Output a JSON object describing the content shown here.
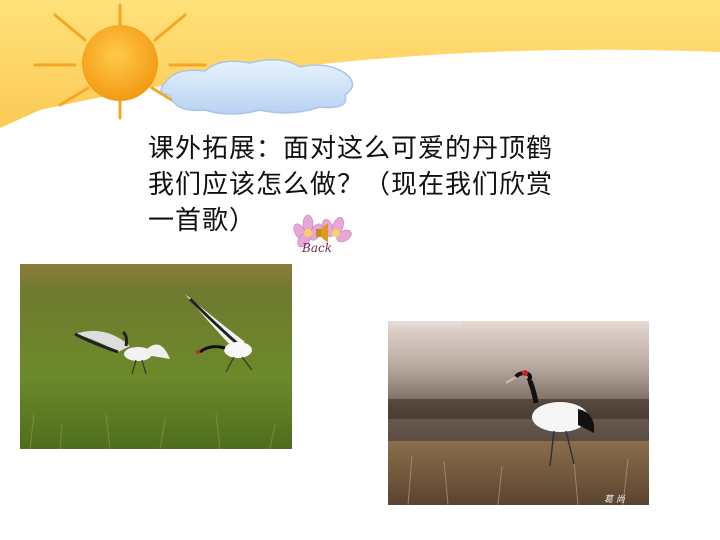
{
  "slide": {
    "text": "课外拓展：面对这么可爱的丹顶鹤我们应该怎么做？（现在我们欣赏一首歌）",
    "line1": "课外拓展：面对这么可爱的丹顶鹤",
    "line2": "我们应该怎么做？（现在我们欣赏",
    "line3": "一首歌）"
  },
  "audio_button": {
    "label": "Back",
    "icon": "speaker-icon"
  },
  "colors": {
    "banner": "#FDD26A",
    "sun": "#F7A21B",
    "cloud": "#BFD8F5"
  },
  "photos": [
    {
      "name": "cranes-in-grass-photo"
    },
    {
      "name": "crane-walking-photo",
      "signature": "葛 尚"
    }
  ]
}
